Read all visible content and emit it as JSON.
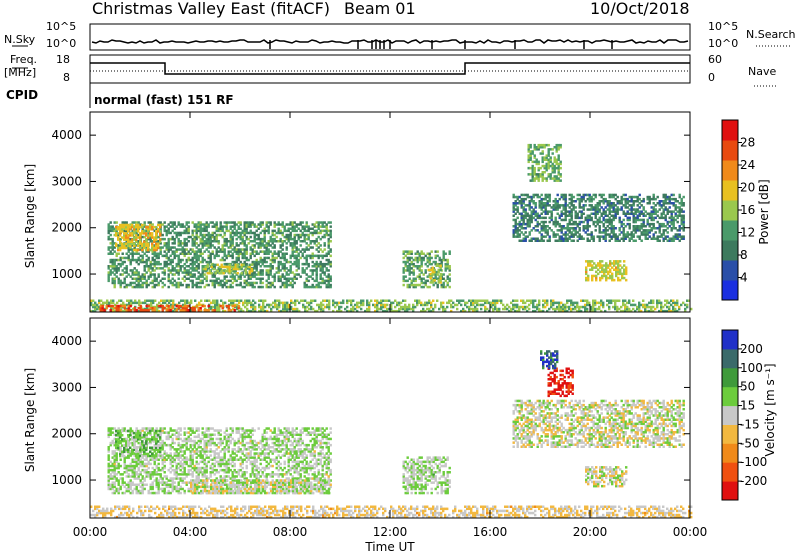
{
  "header": {
    "title": "Christmas Valley East (fitACF)",
    "beam": "Beam 01",
    "date": "10/Oct/2018"
  },
  "indicators": {
    "nsky_label": "N.Sky",
    "nsky_ticks": [
      "10^5",
      "10^0"
    ],
    "nsearch_label": "N.Search",
    "nsearch_ticks": [
      "10^5",
      "10^0"
    ],
    "freq_label_1": "Freq.",
    "freq_label_2": "[MHz]",
    "freq_ticks": [
      "18",
      "8"
    ],
    "nave_label": "Nave",
    "nave_ticks": [
      "60",
      "0"
    ],
    "cpid_label": "CPID",
    "cpid_text": "normal (fast) 151 RF"
  },
  "colors": {
    "power_scale": [
      "#1a2fe0",
      "#2a4fa8",
      "#3d7a5e",
      "#4a9a6a",
      "#9ac84e",
      "#e8c020",
      "#f08a1a",
      "#e84a10",
      "#e01010"
    ],
    "velocity_scale": [
      "#e01010",
      "#f05010",
      "#f08a1a",
      "#f2b840",
      "#c8c8c8",
      "#6ccc3c",
      "#3f9a3a",
      "#3a6a6a",
      "#2030c8"
    ]
  },
  "chart_data": [
    {
      "type": "heatmap",
      "title": "",
      "ylabel": "Slant Range [km]",
      "yticks": [
        "4000",
        "3000",
        "2000",
        "1000"
      ],
      "ylim": [
        180,
        4500
      ],
      "xlim": [
        0,
        24
      ],
      "xticks": [
        "00:00",
        "04:00",
        "08:00",
        "12:00",
        "16:00",
        "20:00",
        "00:00"
      ],
      "colorbar_label": "Power [dB]",
      "colorbar_ticks": [
        "28",
        "24",
        "20",
        "16",
        "12",
        "8",
        "4"
      ],
      "vrange": [
        0,
        30
      ],
      "regions": [
        {
          "t0": 0.7,
          "t1": 9.6,
          "r0": 700,
          "r1": 2100,
          "v": 11
        },
        {
          "t0": 1.0,
          "t1": 2.8,
          "r0": 1500,
          "r1": 2050,
          "v": 18
        },
        {
          "t0": 4.5,
          "t1": 6.5,
          "r0": 1000,
          "r1": 1200,
          "v": 16
        },
        {
          "t0": 12.5,
          "t1": 14.4,
          "r0": 700,
          "r1": 1500,
          "v": 12
        },
        {
          "t0": 13.5,
          "t1": 14.0,
          "r0": 800,
          "r1": 1200,
          "v": 16
        },
        {
          "t0": 16.9,
          "t1": 23.7,
          "r0": 1700,
          "r1": 2700,
          "v": 9
        },
        {
          "t0": 19.8,
          "t1": 21.4,
          "r0": 850,
          "r1": 1300,
          "v": 17
        },
        {
          "t0": 17.5,
          "t1": 18.8,
          "r0": 3000,
          "r1": 3800,
          "v": 13
        },
        {
          "t0": 0.0,
          "t1": 24.0,
          "r0": 180,
          "r1": 420,
          "v": 14
        },
        {
          "t0": 0.3,
          "t1": 6.0,
          "r0": 200,
          "r1": 320,
          "v": 24
        }
      ]
    },
    {
      "type": "heatmap",
      "title": "",
      "ylabel": "Slant Range [km]",
      "yticks": [
        "4000",
        "3000",
        "2000",
        "1000"
      ],
      "ylim": [
        180,
        4500
      ],
      "xlim": [
        0,
        24
      ],
      "xticks": [
        "00:00",
        "04:00",
        "08:00",
        "12:00",
        "16:00",
        "20:00",
        "00:00"
      ],
      "xlabel": "Time UT",
      "colorbar_label": "Velocity [m s⁻¹]",
      "colorbar_ticks": [
        "200",
        "100",
        "50",
        "15",
        "-15",
        "-50",
        "-100",
        "-200"
      ],
      "vrange": [
        -250,
        250
      ],
      "regions": [
        {
          "t0": 0.7,
          "t1": 9.6,
          "r0": 700,
          "r1": 2100,
          "v": 25
        },
        {
          "t0": 1.0,
          "t1": 2.8,
          "r0": 1500,
          "r1": 2050,
          "v": 60
        },
        {
          "t0": 4.0,
          "t1": 9.6,
          "r0": 700,
          "r1": 1000,
          "v": 0
        },
        {
          "t0": 12.5,
          "t1": 14.4,
          "r0": 700,
          "r1": 1500,
          "v": 30
        },
        {
          "t0": 16.9,
          "t1": 23.7,
          "r0": 1700,
          "r1": 2700,
          "v": 0
        },
        {
          "t0": 19.8,
          "t1": 21.4,
          "r0": 850,
          "r1": 1300,
          "v": 0
        },
        {
          "t0": 18.3,
          "t1": 19.3,
          "r0": 2800,
          "r1": 3400,
          "v": -220
        },
        {
          "t0": 18.0,
          "t1": 18.7,
          "r0": 3400,
          "r1": 3800,
          "v": 180
        },
        {
          "t0": 0.0,
          "t1": 24.0,
          "r0": 180,
          "r1": 420,
          "v": -30
        }
      ]
    }
  ]
}
